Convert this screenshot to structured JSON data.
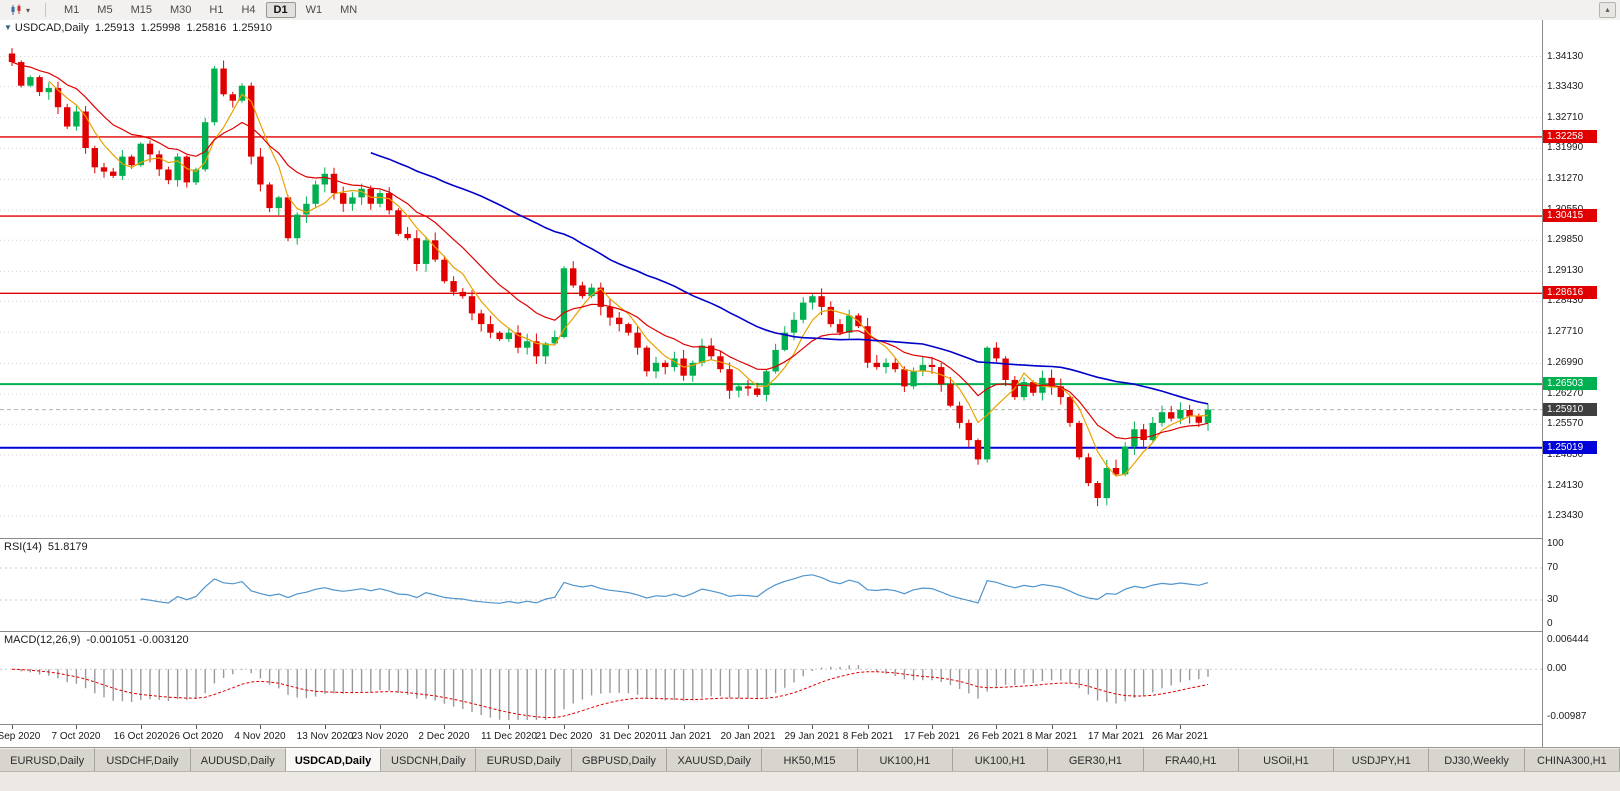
{
  "toolbar": {
    "periods": [
      "M1",
      "M5",
      "M15",
      "M30",
      "H1",
      "H4",
      "D1",
      "W1",
      "MN"
    ],
    "active_period": "D1",
    "chart_type_caret": "▾",
    "overflow_glyph": "▴"
  },
  "chart": {
    "symbol_title": "USDCAD,Daily",
    "ohlc": {
      "open": "1.25913",
      "high": "1.25998",
      "low": "1.25816",
      "close": "1.25910"
    },
    "y_axis_labels": [
      "1.34130",
      "1.33430",
      "1.32710",
      "1.31990",
      "1.31270",
      "1.30550",
      "1.29850",
      "1.29130",
      "1.28430",
      "1.27710",
      "1.26990",
      "1.26270",
      "1.25570",
      "1.24850",
      "1.24130",
      "1.23430"
    ],
    "levels": [
      {
        "label": "1.32258",
        "value": 1.32258,
        "color": "#e00000",
        "width": 1.4
      },
      {
        "label": "1.30415",
        "value": 1.30415,
        "color": "#e00000",
        "width": 1.4
      },
      {
        "label": "1.28616",
        "value": 1.28616,
        "color": "#e00000",
        "width": 1.4
      },
      {
        "label": "1.26503",
        "value": 1.26503,
        "color": "#00b050",
        "width": 2
      },
      {
        "label": "1.25019",
        "value": 1.25019,
        "color": "#0000d8",
        "width": 2
      }
    ],
    "current_price": {
      "label": "1.25910",
      "value": 1.2591,
      "bg": "#3f3f3f"
    },
    "date_labels": [
      {
        "text": "28 Sep 2020",
        "bar": 0
      },
      {
        "text": "7 Oct 2020",
        "bar": 7
      },
      {
        "text": "16 Oct 2020",
        "bar": 14
      },
      {
        "text": "26 Oct 2020",
        "bar": 20
      },
      {
        "text": "4 Nov 2020",
        "bar": 27
      },
      {
        "text": "13 Nov 2020",
        "bar": 34
      },
      {
        "text": "23 Nov 2020",
        "bar": 40
      },
      {
        "text": "2 Dec 2020",
        "bar": 47
      },
      {
        "text": "11 Dec 2020",
        "bar": 54
      },
      {
        "text": "21 Dec 2020",
        "bar": 60
      },
      {
        "text": "31 Dec 2020",
        "bar": 67
      },
      {
        "text": "11 Jan 2021",
        "bar": 73
      },
      {
        "text": "20 Jan 2021",
        "bar": 80
      },
      {
        "text": "29 Jan 2021",
        "bar": 87
      },
      {
        "text": "8 Feb 2021",
        "bar": 93
      },
      {
        "text": "17 Feb 2021",
        "bar": 100
      },
      {
        "text": "26 Feb 2021",
        "bar": 107
      },
      {
        "text": "8 Mar 2021",
        "bar": 113
      },
      {
        "text": "17 Mar 2021",
        "bar": 120
      },
      {
        "text": "26 Mar 2021",
        "bar": 127
      }
    ]
  },
  "rsi": {
    "title": "RSI(14)",
    "value": "51.8179",
    "period": 14,
    "axis_labels": [
      100,
      70,
      30,
      0
    ],
    "guides": [
      70,
      30
    ],
    "color": "#4f94cd"
  },
  "macd": {
    "title": "MACD(12,26,9)",
    "value_text": "-0.001051 -0.003120",
    "fast": 12,
    "slow": 26,
    "signal": 9,
    "axis_top": "0.006444",
    "axis_zero": "0.00",
    "axis_bottom": "-0.00987",
    "range": [
      -0.00987,
      0.006444
    ]
  },
  "tabs": {
    "active_index": 3,
    "items": [
      "EURUSD,Daily",
      "USDCHF,Daily",
      "AUDUSD,Daily",
      "USDCAD,Daily",
      "USDCNH,Daily",
      "EURUSD,Daily",
      "GBPUSD,Daily",
      "XAUUSD,Daily",
      "HK50,M15",
      "UK100,H1",
      "UK100,H1",
      "GER30,H1",
      "FRA40,H1",
      "USOil,H1",
      "USDJPY,H1",
      "DJ30,Weekly",
      "CHINA300,H1"
    ]
  },
  "chart_data": {
    "type": "candlestick",
    "symbol": "USDCAD",
    "timeframe": "Daily",
    "x_start_date": "28 Sep 2020",
    "x_end_date": "31 Mar 2021",
    "y_range": [
      1.2292,
      1.3498
    ],
    "first_open": 1.342,
    "closes": [
      1.34,
      1.3345,
      1.3365,
      1.333,
      1.334,
      1.3295,
      1.325,
      1.3285,
      1.32,
      1.3155,
      1.3145,
      1.3135,
      1.318,
      1.316,
      1.321,
      1.3185,
      1.315,
      1.3125,
      1.318,
      1.312,
      1.315,
      1.326,
      1.3385,
      1.3325,
      1.331,
      1.3345,
      1.318,
      1.3115,
      1.306,
      1.3085,
      1.299,
      1.3045,
      1.307,
      1.3115,
      1.314,
      1.3095,
      1.307,
      1.3085,
      1.3105,
      1.307,
      1.3095,
      1.3055,
      1.3,
      1.299,
      1.293,
      1.2985,
      1.294,
      1.289,
      1.2865,
      1.2855,
      1.2815,
      1.279,
      1.277,
      1.2755,
      1.277,
      1.2735,
      1.275,
      1.2715,
      1.2745,
      1.276,
      1.292,
      1.288,
      1.2855,
      1.2875,
      1.283,
      1.2805,
      1.279,
      1.277,
      1.2735,
      1.268,
      1.27,
      1.269,
      1.271,
      1.267,
      1.27,
      1.274,
      1.2715,
      1.2685,
      1.2635,
      1.2645,
      1.264,
      1.2625,
      1.268,
      1.273,
      1.277,
      1.28,
      1.284,
      1.2855,
      1.283,
      1.279,
      1.277,
      1.281,
      1.2785,
      1.27,
      1.269,
      1.27,
      1.2685,
      1.2645,
      1.268,
      1.2695,
      1.269,
      1.265,
      1.26,
      1.256,
      1.252,
      1.2475,
      1.2735,
      1.271,
      1.266,
      1.262,
      1.2655,
      1.263,
      1.2665,
      1.2645,
      1.262,
      1.256,
      1.248,
      1.242,
      1.2385,
      1.2455,
      1.244,
      1.2505,
      1.2545,
      1.252,
      1.256,
      1.2585,
      1.257,
      1.259,
      1.2575,
      1.256,
      1.2591
    ],
    "moving_averages": [
      {
        "name": "MA fast",
        "method": "sma",
        "period": 5,
        "color": "#e8a200",
        "width": 1.2
      },
      {
        "name": "MA mid",
        "method": "ema",
        "period": 13,
        "color": "#e00000",
        "width": 1.2
      },
      {
        "name": "MA slow",
        "method": "sma",
        "period": 40,
        "color": "#0000c8",
        "width": 1.6
      }
    ],
    "colors": {
      "up": "#00b050",
      "down": "#e00000",
      "grid": "#d4d4d4",
      "current_price_line": "#b0b0b0",
      "macd_hist": "#9a9a9a",
      "macd_signal": "#e00000"
    }
  }
}
